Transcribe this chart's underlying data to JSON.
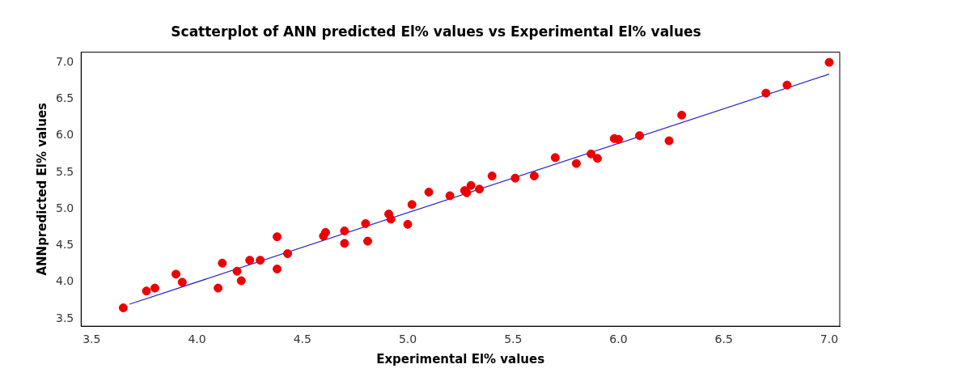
{
  "chart_data": {
    "type": "scatter",
    "title": "Scatterplot of ANN predicted El% values vs Experimental El% values",
    "xlabel": "Experimental El% values",
    "ylabel": "ANNpredicted El% values",
    "xlim": [
      3.45,
      7.05
    ],
    "ylim": [
      3.4,
      7.14
    ],
    "xticks": [
      3.5,
      {
        "value": 4,
        "label": "4.0"
      },
      4.5,
      {
        "value": 5,
        "label": "5.0"
      },
      5.5,
      {
        "value": 6,
        "label": "6.0"
      },
      6.5,
      {
        "value": 7,
        "label": "7.0"
      }
    ],
    "yticks": [
      3.5,
      {
        "value": 4,
        "label": "4.0"
      },
      4.5,
      {
        "value": 5,
        "label": "5.0"
      },
      5.5,
      {
        "value": 6,
        "label": "6.0"
      },
      6.5,
      {
        "value": 7,
        "label": "7.0"
      }
    ],
    "grid": false,
    "legend": false,
    "series": [
      {
        "marker": "circle",
        "color": "#ee0000",
        "x": [
          3.65,
          3.76,
          3.8,
          3.9,
          3.93,
          4.1,
          4.12,
          4.19,
          4.21,
          4.25,
          4.3,
          4.38,
          4.38,
          4.43,
          4.6,
          4.61,
          4.7,
          4.7,
          4.8,
          4.81,
          4.91,
          4.92,
          5.0,
          5.02,
          5.1,
          5.2,
          5.27,
          5.28,
          5.3,
          5.34,
          5.4,
          5.51,
          5.6,
          5.7,
          5.8,
          5.87,
          5.9,
          5.98,
          6.0,
          6.1,
          6.24,
          6.3,
          6.7,
          6.8,
          7.0
        ],
        "values": [
          3.65,
          3.88,
          3.92,
          4.11,
          4.0,
          3.92,
          4.26,
          4.15,
          4.02,
          4.3,
          4.3,
          4.62,
          4.18,
          4.39,
          4.63,
          4.68,
          4.7,
          4.53,
          4.8,
          4.56,
          4.93,
          4.86,
          4.79,
          5.06,
          5.23,
          5.18,
          5.25,
          5.22,
          5.32,
          5.27,
          5.45,
          5.42,
          5.45,
          5.7,
          5.62,
          5.75,
          5.69,
          5.96,
          5.95,
          6.0,
          5.93,
          6.28,
          6.58,
          6.69,
          7.0
        ]
      },
      {
        "type": "line",
        "marker": "none",
        "line_style": "solid",
        "color": "#2222cc",
        "x": [
          3.68,
          7.0
        ],
        "values": [
          3.7,
          6.84
        ]
      }
    ]
  }
}
